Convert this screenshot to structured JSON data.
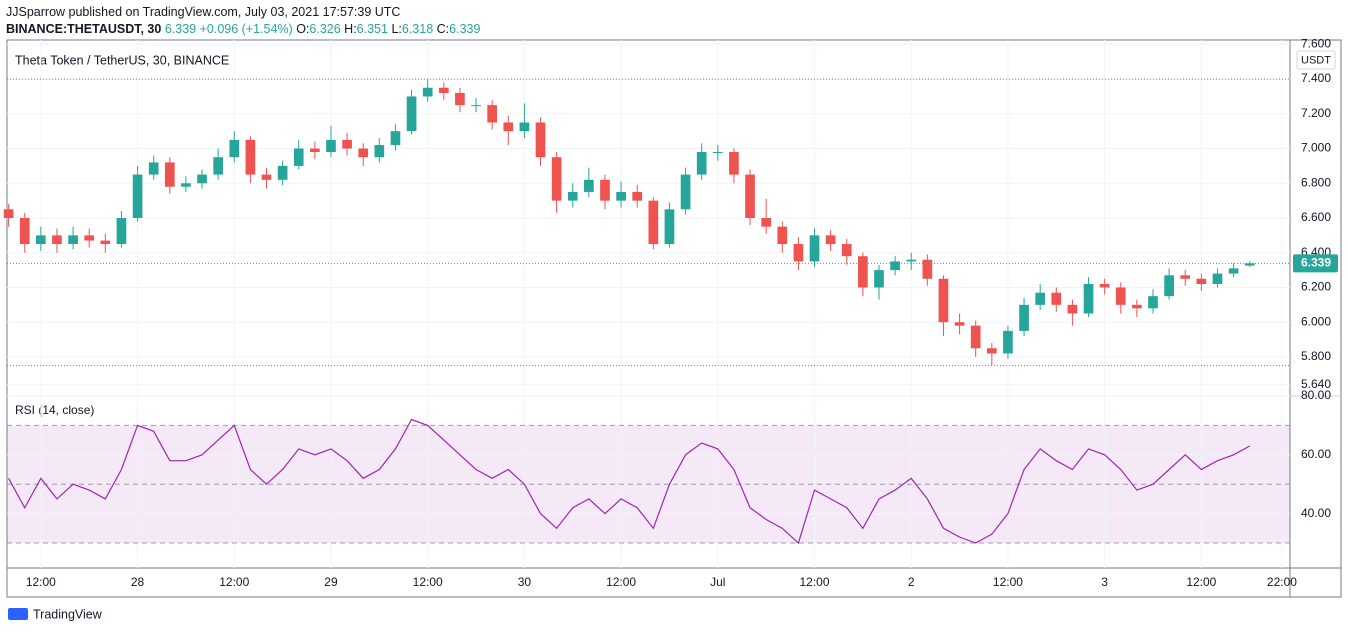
{
  "header": {
    "published": "JJSparrow published on TradingView.com, July 03, 2021 17:57:39 UTC",
    "symbol": "BINANCE:THETAUSDT, 30",
    "change": "+0.096 (+1.54%)",
    "ohlc_labels": [
      "O:",
      "H:",
      "L:",
      "C:"
    ],
    "unit": "USDT",
    "brand": "TradingView"
  },
  "chart_data": [
    {
      "type": "candlestick",
      "title": "Theta Token / TetherUS, 30, BINANCE",
      "up_color": "#26a69a",
      "down_color": "#ef5350",
      "grid": true,
      "open": [
        6.65,
        6.6,
        6.45,
        6.5,
        6.45,
        6.5,
        6.47,
        6.45,
        6.6,
        6.85,
        6.92,
        6.78,
        6.8,
        6.85,
        6.95,
        7.05,
        6.85,
        6.82,
        6.9,
        7.0,
        6.98,
        7.05,
        7.0,
        6.95,
        7.02,
        7.1,
        7.3,
        7.35,
        7.32,
        7.25,
        7.25,
        7.15,
        7.1,
        7.15,
        6.95,
        6.7,
        6.75,
        6.82,
        6.7,
        6.75,
        6.7,
        6.45,
        6.65,
        6.85,
        6.98,
        6.98,
        6.85,
        6.6,
        6.55,
        6.45,
        6.35,
        6.5,
        6.45,
        6.38,
        6.2,
        6.3,
        6.35,
        6.36,
        6.25,
        6.0,
        5.98,
        5.85,
        5.82,
        5.95,
        6.1,
        6.17,
        6.1,
        6.05,
        6.22,
        6.2,
        6.1,
        6.08,
        6.15,
        6.27,
        6.25,
        6.22,
        6.28,
        6.326
      ],
      "high": [
        6.68,
        6.63,
        6.55,
        6.54,
        6.55,
        6.54,
        6.51,
        6.64,
        6.9,
        6.96,
        6.95,
        6.84,
        6.88,
        7.0,
        7.1,
        7.07,
        6.89,
        6.93,
        7.05,
        7.04,
        7.13,
        7.09,
        7.03,
        7.06,
        7.14,
        7.34,
        7.4,
        7.38,
        7.35,
        7.29,
        7.28,
        7.19,
        7.26,
        7.18,
        6.98,
        6.8,
        6.89,
        6.85,
        6.81,
        6.79,
        6.72,
        6.69,
        6.89,
        7.03,
        7.02,
        7.0,
        6.88,
        6.71,
        6.58,
        6.49,
        6.54,
        6.53,
        6.48,
        6.4,
        6.33,
        6.38,
        6.4,
        6.39,
        6.27,
        6.05,
        6.01,
        5.88,
        5.98,
        6.14,
        6.22,
        6.2,
        6.13,
        6.26,
        6.25,
        6.23,
        6.13,
        6.19,
        6.31,
        6.3,
        6.28,
        6.31,
        6.34,
        6.351
      ],
      "low": [
        6.55,
        6.4,
        6.41,
        6.4,
        6.42,
        6.43,
        6.4,
        6.43,
        6.58,
        6.82,
        6.74,
        6.75,
        6.77,
        6.82,
        6.92,
        6.8,
        6.77,
        6.79,
        6.88,
        6.94,
        6.95,
        6.96,
        6.9,
        6.92,
        6.99,
        7.08,
        7.27,
        7.28,
        7.21,
        7.21,
        7.11,
        7.02,
        7.06,
        6.9,
        6.63,
        6.66,
        6.72,
        6.65,
        6.66,
        6.66,
        6.42,
        6.43,
        6.62,
        6.82,
        6.93,
        6.8,
        6.56,
        6.51,
        6.4,
        6.3,
        6.32,
        6.41,
        6.33,
        6.15,
        6.13,
        6.27,
        6.3,
        6.21,
        5.92,
        5.93,
        5.8,
        5.75,
        5.79,
        5.92,
        6.07,
        6.06,
        5.98,
        6.03,
        6.16,
        6.05,
        6.03,
        6.05,
        6.13,
        6.21,
        6.18,
        6.2,
        6.26,
        6.318
      ],
      "close": [
        6.6,
        6.45,
        6.5,
        6.45,
        6.5,
        6.47,
        6.45,
        6.6,
        6.85,
        6.92,
        6.78,
        6.8,
        6.85,
        6.95,
        7.05,
        6.85,
        6.82,
        6.9,
        7.0,
        6.98,
        7.05,
        7.0,
        6.95,
        7.02,
        7.1,
        7.3,
        7.35,
        7.32,
        7.25,
        7.25,
        7.15,
        7.1,
        7.15,
        6.95,
        6.7,
        6.75,
        6.82,
        6.7,
        6.75,
        6.7,
        6.45,
        6.65,
        6.85,
        6.98,
        6.98,
        6.85,
        6.6,
        6.55,
        6.45,
        6.35,
        6.5,
        6.45,
        6.38,
        6.2,
        6.3,
        6.35,
        6.36,
        6.25,
        6.0,
        5.98,
        5.85,
        5.82,
        5.95,
        6.1,
        6.17,
        6.1,
        6.05,
        6.22,
        6.2,
        6.1,
        6.08,
        6.15,
        6.27,
        6.25,
        6.22,
        6.28,
        6.31,
        6.339
      ],
      "xlim": [
        -0.1,
        79.5
      ],
      "xticks": [
        {
          "value": 2,
          "label": "12:00"
        },
        {
          "value": 8,
          "label": "28"
        },
        {
          "value": 14,
          "label": "12:00"
        },
        {
          "value": 20,
          "label": "29"
        },
        {
          "value": 26,
          "label": "12:00"
        },
        {
          "value": 32,
          "label": "30"
        },
        {
          "value": 38,
          "label": "12:00"
        },
        {
          "value": 44,
          "label": "Jul"
        },
        {
          "value": 50,
          "label": "12:00"
        },
        {
          "value": 56,
          "label": "2"
        },
        {
          "value": 62,
          "label": "12:00"
        },
        {
          "value": 68,
          "label": "3"
        },
        {
          "value": 74,
          "label": "12:00"
        },
        {
          "value": 79,
          "label": "22:00"
        }
      ],
      "ylim": [
        5.575,
        7.625
      ],
      "yticks": [
        {
          "value": 5.64,
          "label": "5.640"
        },
        {
          "value": 5.8,
          "label": "5.800"
        },
        {
          "value": 6.0,
          "label": "6.000"
        },
        {
          "value": 6.2,
          "label": "6.200"
        },
        {
          "value": 6.4,
          "label": "6.400"
        },
        {
          "value": 6.6,
          "label": "6.600"
        },
        {
          "value": 6.8,
          "label": "6.800"
        },
        {
          "value": 7.0,
          "label": "7.000"
        },
        {
          "value": 7.2,
          "label": "7.200"
        },
        {
          "value": 7.4,
          "label": "7.400"
        },
        {
          "value": 7.6,
          "label": "7.600"
        }
      ],
      "hlines": [
        7.4,
        5.75
      ]
    },
    {
      "type": "line",
      "title": "RSI (14, close)",
      "color": "#9c27b0",
      "band_color": "#9c27b0",
      "values": [
        52,
        42,
        52,
        45,
        50,
        48,
        45,
        55,
        70,
        68,
        58,
        58,
        60,
        65,
        70,
        55,
        50,
        55,
        62,
        60,
        62,
        58,
        52,
        55,
        62,
        72,
        70,
        65,
        60,
        55,
        52,
        55,
        50,
        40,
        35,
        42,
        45,
        40,
        45,
        42,
        35,
        50,
        60,
        64,
        62,
        55,
        42,
        38,
        35,
        30,
        48,
        45,
        42,
        35,
        45,
        48,
        52,
        45,
        35,
        32,
        30,
        33,
        40,
        55,
        62,
        58,
        55,
        62,
        60,
        55,
        48,
        50,
        55,
        60,
        55,
        58,
        60,
        63
      ],
      "ylim": [
        21.5,
        80
      ],
      "yticks": [
        {
          "value": 40,
          "label": "40.00"
        },
        {
          "value": 60,
          "label": "60.00"
        },
        {
          "value": 80,
          "label": "80.00"
        }
      ],
      "levels": [
        70,
        50,
        30
      ]
    }
  ]
}
